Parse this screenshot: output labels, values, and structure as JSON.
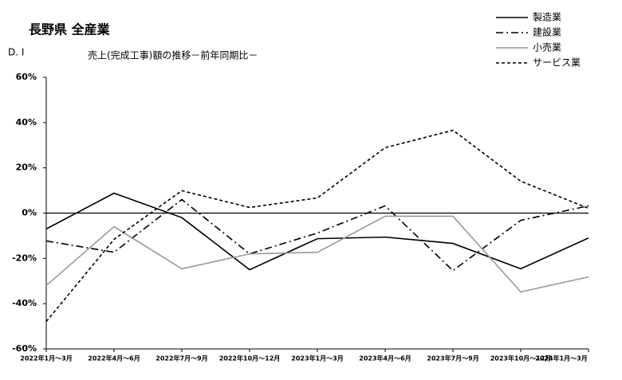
{
  "chart_data": {
    "type": "line",
    "title": "長野県 全産業",
    "y_label": "D. I",
    "subtitle": "売上(完成工事)額の推移－前年同期比－",
    "categories": [
      "2022年1月～3月",
      "2022年4月～6月",
      "2022年7月～9月",
      "2022年10月～12月",
      "2023年1月～3月",
      "2023年4月～6月",
      "2023年7月～9月",
      "2023年10月～12月",
      "2024年1月～3月"
    ],
    "series": [
      {
        "name": "製造業",
        "color": "#000000",
        "line_style": "solid",
        "values": [
          -7,
          8.8,
          -2,
          -25,
          -11.3,
          -10.6,
          -13.4,
          -24.6,
          -11
        ]
      },
      {
        "name": "建設業",
        "color": "#000000",
        "line_style": "dashdot",
        "values": [
          -12.3,
          -17.3,
          6,
          -18,
          -8.8,
          3.2,
          -25.4,
          -3.2,
          3.2
        ]
      },
      {
        "name": "小売業",
        "color": "#999999",
        "line_style": "solid",
        "values": [
          -32,
          -6,
          -24.6,
          -18,
          -17.3,
          -1.4,
          -1.4,
          -34.8,
          -28.2
        ]
      },
      {
        "name": "サービス業",
        "color": "#000000",
        "line_style": "dashed",
        "values": [
          -47.9,
          -11.6,
          9.9,
          2.5,
          6.7,
          28.9,
          36.6,
          14.1,
          2.1
        ]
      }
    ],
    "ylim": [
      -60,
      60
    ],
    "yticks": [
      {
        "value": -60,
        "label": "-60%"
      },
      {
        "value": -40,
        "label": "-40%"
      },
      {
        "value": -20,
        "label": "-20%"
      },
      {
        "value": 0,
        "label": "0%"
      },
      {
        "value": 20,
        "label": "20%"
      },
      {
        "value": 40,
        "label": "40%"
      },
      {
        "value": 60,
        "label": "60%"
      }
    ],
    "legend": "top-right"
  }
}
